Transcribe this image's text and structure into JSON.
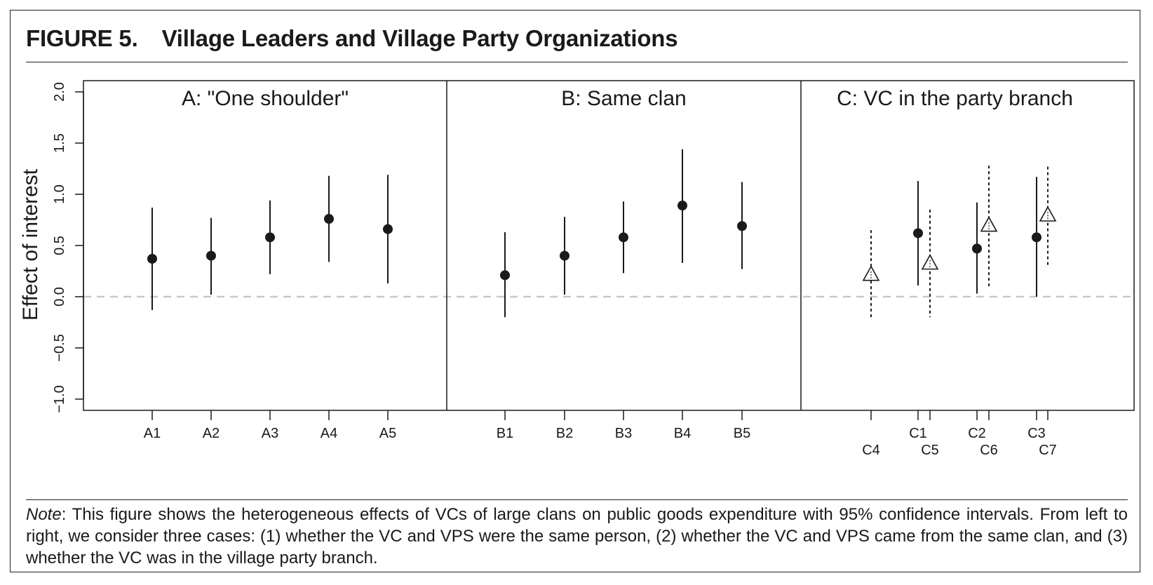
{
  "figure": {
    "number": "FIGURE 5.",
    "title": "Village Leaders and Village Party Organizations"
  },
  "note": {
    "lead": "Note",
    "text": ": This figure shows the heterogeneous effects of VCs of large clans on public goods expenditure with 95% confidence intervals. From left to right, we consider three cases: (1) whether the VC and VPS were the same person, (2) whether the VC and VPS came from the same clan, and (3) whether the VC was in the village party branch."
  },
  "colors": {
    "ink": "#1a1a1a",
    "zero_line": "#c8c8c8",
    "triangle_fill": "#ffffff"
  },
  "chart_data": {
    "type": "scatter",
    "ylabel": "Effect of interest",
    "ylim": [
      -1.0,
      2.0
    ],
    "yticks": [
      "−1.0",
      "−0.5",
      "0.0",
      "0.5",
      "1.0",
      "1.5",
      "2.0"
    ],
    "ytick_values": [
      -1.0,
      -0.5,
      0.0,
      0.5,
      1.0,
      1.5,
      2.0
    ],
    "reference_line": 0.0,
    "grid": false,
    "panels": [
      {
        "title": "A: \"One shoulder\"",
        "series": [
          {
            "marker": "filled-circle",
            "line": "solid",
            "points": [
              {
                "label": "A1",
                "y": 0.37,
                "lo": -0.13,
                "hi": 0.87
              },
              {
                "label": "A2",
                "y": 0.4,
                "lo": 0.02,
                "hi": 0.77
              },
              {
                "label": "A3",
                "y": 0.58,
                "lo": 0.22,
                "hi": 0.94
              },
              {
                "label": "A4",
                "y": 0.76,
                "lo": 0.34,
                "hi": 1.18
              },
              {
                "label": "A5",
                "y": 0.66,
                "lo": 0.13,
                "hi": 1.19
              }
            ]
          }
        ]
      },
      {
        "title": "B: Same clan",
        "series": [
          {
            "marker": "filled-circle",
            "line": "solid",
            "points": [
              {
                "label": "B1",
                "y": 0.21,
                "lo": -0.2,
                "hi": 0.63
              },
              {
                "label": "B2",
                "y": 0.4,
                "lo": 0.02,
                "hi": 0.78
              },
              {
                "label": "B3",
                "y": 0.58,
                "lo": 0.23,
                "hi": 0.93
              },
              {
                "label": "B4",
                "y": 0.89,
                "lo": 0.33,
                "hi": 1.44
              },
              {
                "label": "B5",
                "y": 0.69,
                "lo": 0.27,
                "hi": 1.12
              }
            ]
          }
        ]
      },
      {
        "title": "C: VC in the party branch",
        "series": [
          {
            "marker": "filled-circle",
            "line": "solid",
            "points": [
              {
                "label": "C1",
                "y": 0.62,
                "lo": 0.11,
                "hi": 1.13
              },
              {
                "label": "C2",
                "y": 0.47,
                "lo": 0.03,
                "hi": 0.92
              },
              {
                "label": "C3",
                "y": 0.58,
                "lo": 0.0,
                "hi": 1.17
              }
            ]
          },
          {
            "marker": "open-triangle",
            "line": "dashed",
            "points": [
              {
                "label": "C4",
                "y": 0.22,
                "lo": -0.22,
                "hi": 0.65
              },
              {
                "label": "C5",
                "y": 0.33,
                "lo": -0.2,
                "hi": 0.85
              },
              {
                "label": "C6",
                "y": 0.7,
                "lo": 0.08,
                "hi": 1.28
              },
              {
                "label": "C7",
                "y": 0.8,
                "lo": 0.3,
                "hi": 1.27
              }
            ]
          }
        ]
      }
    ]
  }
}
